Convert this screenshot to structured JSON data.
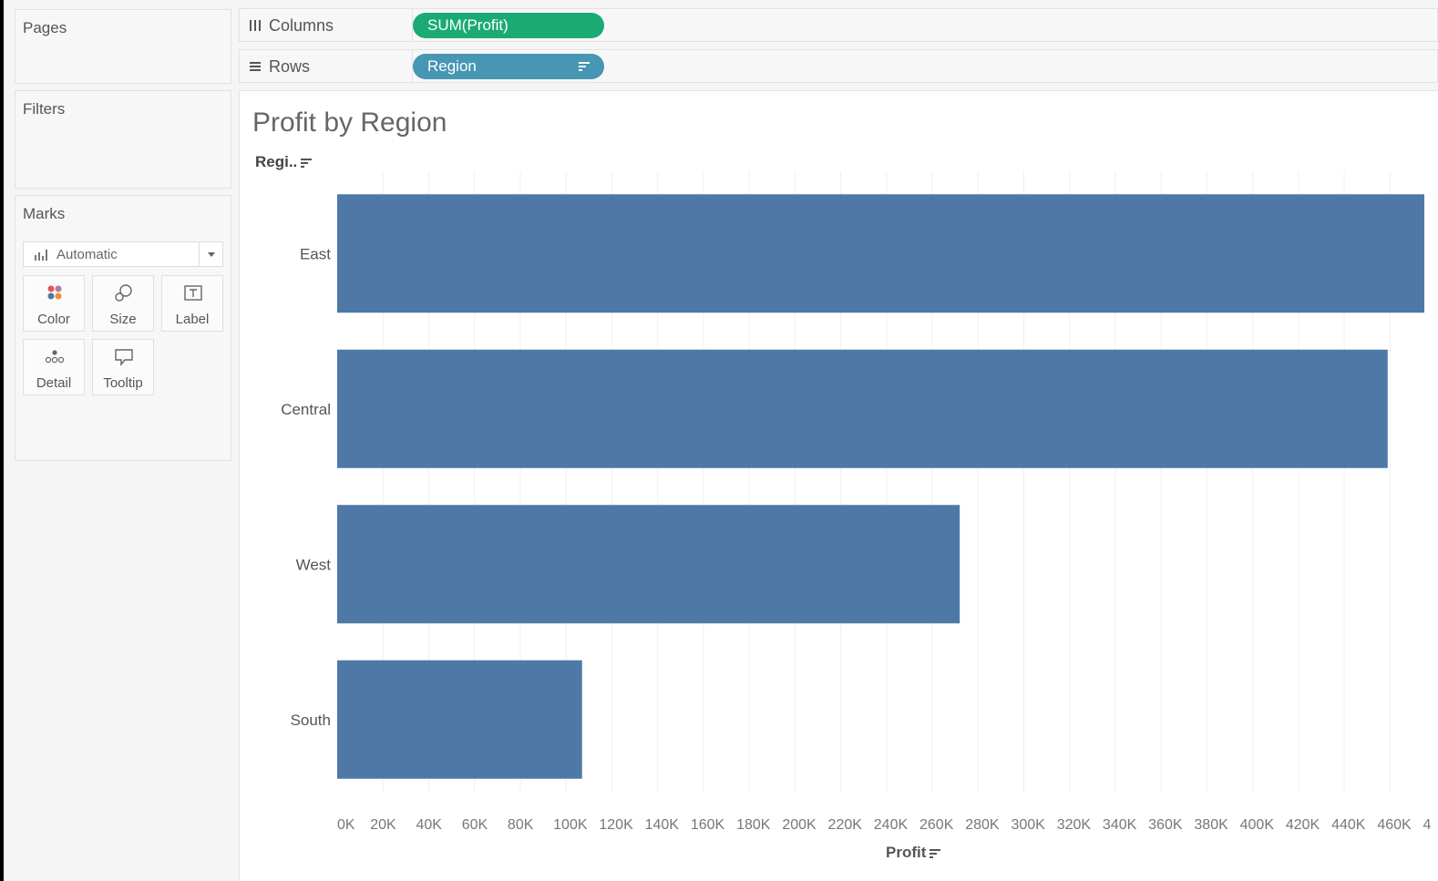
{
  "sidebar": {
    "pages_title": "Pages",
    "filters_title": "Filters",
    "marks": {
      "title": "Marks",
      "mark_type": "Automatic",
      "buttons": [
        {
          "label": "Color",
          "icon": "color-dots-icon"
        },
        {
          "label": "Size",
          "icon": "size-shapes-icon"
        },
        {
          "label": "Label",
          "icon": "text-box-icon"
        },
        {
          "label": "Detail",
          "icon": "detail-dots-icon"
        },
        {
          "label": "Tooltip",
          "icon": "speech-bubble-icon"
        }
      ]
    }
  },
  "shelves": {
    "columns": {
      "label": "Columns",
      "pill": "SUM(Profit)",
      "pill_color": "#1aab75"
    },
    "rows": {
      "label": "Rows",
      "pill": "Region",
      "pill_color": "#4796b3"
    }
  },
  "view": {
    "title": "Profit by Region",
    "row_header": "Regi..",
    "axis_title": "Profit"
  },
  "chart_data": {
    "type": "bar",
    "orientation": "horizontal",
    "categories": [
      "East",
      "Central",
      "West",
      "South"
    ],
    "values": [
      475000,
      459000,
      272000,
      107000
    ],
    "xlabel": "Profit",
    "xlim": [
      0,
      475000
    ],
    "tick_labels": [
      "0K",
      "20K",
      "40K",
      "60K",
      "80K",
      "100K",
      "120K",
      "140K",
      "160K",
      "180K",
      "200K",
      "220K",
      "240K",
      "260K",
      "280K",
      "300K",
      "320K",
      "340K",
      "360K",
      "380K",
      "400K",
      "420K",
      "440K",
      "460K",
      "4"
    ],
    "bar_color": "#4e79a7",
    "gridlines": true
  }
}
